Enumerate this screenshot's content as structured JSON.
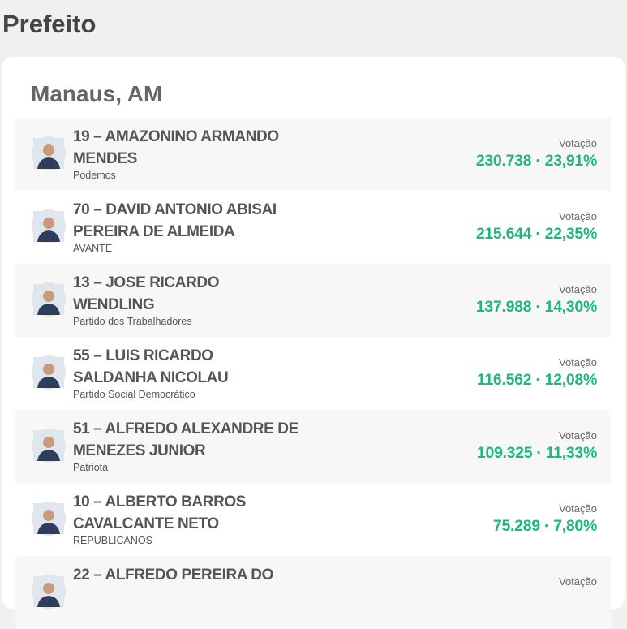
{
  "header": {
    "title": "Prefeito"
  },
  "card": {
    "title": "Manaus, AM",
    "candidates": [
      {
        "name": [
          "19 – AMAZONINO ARMANDO",
          "MENDES"
        ],
        "party": "Podemos",
        "label": "Votação",
        "result": "230.738 · 23,91%"
      },
      {
        "name": [
          "70 – DAVID ANTONIO ABISAI",
          "PEREIRA DE ALMEIDA"
        ],
        "party": "AVANTE",
        "label": "Votação",
        "result": "215.644 · 22,35%"
      },
      {
        "name": [
          "13 – JOSE RICARDO",
          "WENDLING"
        ],
        "party": "Partido dos Trabalhadores",
        "label": "Votação",
        "result": "137.988 · 14,30%"
      },
      {
        "name": [
          "55 – LUIS RICARDO",
          "SALDANHA NICOLAU"
        ],
        "party": "Partido Social Democrático",
        "label": "Votação",
        "result": "116.562 · 12,08%"
      },
      {
        "name": [
          "51 – ALFREDO ALEXANDRE DE",
          "MENEZES JUNIOR"
        ],
        "party": "Patriota",
        "label": "Votação",
        "result": "109.325 · 11,33%"
      },
      {
        "name": [
          "10 – ALBERTO BARROS",
          "CAVALCANTE NETO"
        ],
        "party": "REPUBLICANOS",
        "label": "Votação",
        "result": "75.289 · 7,80%"
      },
      {
        "name": [
          "22 – ALFREDO PEREIRA DO"
        ],
        "label": "Votação"
      }
    ]
  }
}
